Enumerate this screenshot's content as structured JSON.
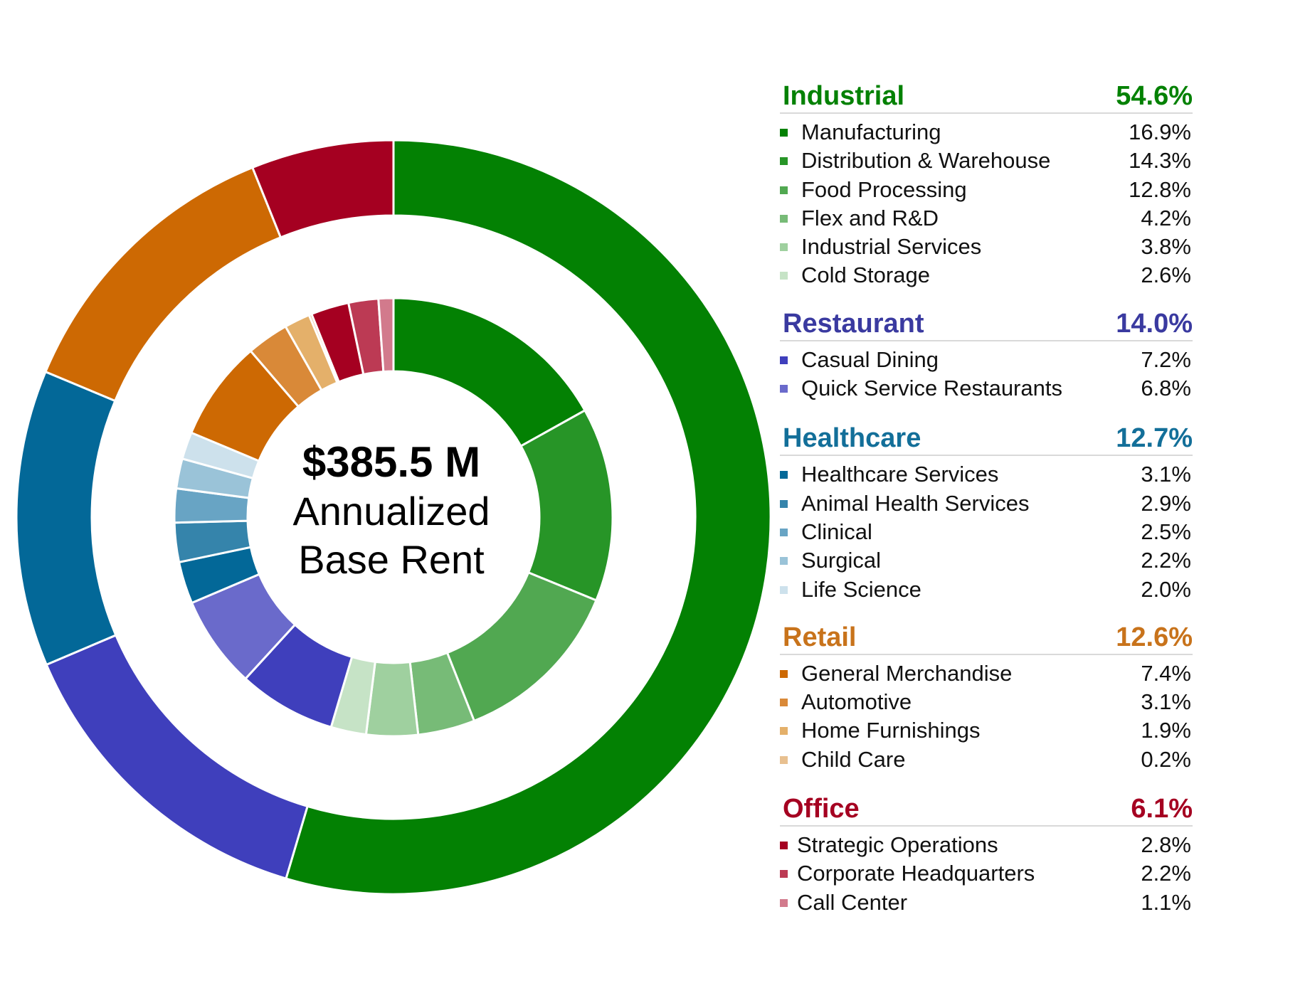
{
  "center": {
    "amount": "$385.5 M",
    "line1": "Annualized",
    "line2": "Base Rent"
  },
  "chart_data": {
    "type": "pie",
    "subtype": "nested-donut",
    "title": "$385.5 M Annualized Base Rent",
    "groups": [
      {
        "name": "Industrial",
        "value": 54.6,
        "pct_label": "54.6%",
        "color": "#038103",
        "items": [
          {
            "name": "Manufacturing",
            "value": 16.9,
            "pct_label": "16.9%",
            "color": "#038103"
          },
          {
            "name": "Distribution & Warehouse",
            "value": 14.3,
            "pct_label": "14.3%",
            "color": "#279527"
          },
          {
            "name": "Food Processing",
            "value": 12.8,
            "pct_label": "12.8%",
            "color": "#51a851"
          },
          {
            "name": "Flex and R&D",
            "value": 4.2,
            "pct_label": "4.2%",
            "color": "#77bb77"
          },
          {
            "name": "Industrial Services",
            "value": 3.8,
            "pct_label": "3.8%",
            "color": "#9fd09f"
          },
          {
            "name": "Cold Storage",
            "value": 2.6,
            "pct_label": "2.6%",
            "color": "#c6e3c6"
          }
        ]
      },
      {
        "name": "Restaurant",
        "value": 14.0,
        "pct_label": "14.0%",
        "color": "#3f3fbc",
        "items": [
          {
            "name": "Casual Dining",
            "value": 7.2,
            "pct_label": "7.2%",
            "color": "#3f3fbc"
          },
          {
            "name": "Quick Service Restaurants",
            "value": 6.8,
            "pct_label": "6.8%",
            "color": "#6a6acb"
          }
        ]
      },
      {
        "name": "Healthcare",
        "value": 12.7,
        "pct_label": "12.7%",
        "color": "#036898",
        "items": [
          {
            "name": "Healthcare Services",
            "value": 3.1,
            "pct_label": "3.1%",
            "color": "#036898"
          },
          {
            "name": "Animal Health Services",
            "value": 2.9,
            "pct_label": "2.9%",
            "color": "#3584ab"
          },
          {
            "name": "Clinical",
            "value": 2.5,
            "pct_label": "2.5%",
            "color": "#68a4c4"
          },
          {
            "name": "Surgical",
            "value": 2.2,
            "pct_label": "2.2%",
            "color": "#9ac3d8"
          },
          {
            "name": "Life Science",
            "value": 2.0,
            "pct_label": "2.0%",
            "color": "#cde1ec"
          }
        ]
      },
      {
        "name": "Retail",
        "value": 12.6,
        "pct_label": "12.6%",
        "color": "#cd6903",
        "items": [
          {
            "name": "General Merchandise",
            "value": 7.4,
            "pct_label": "7.4%",
            "color": "#cd6903"
          },
          {
            "name": "Automotive",
            "value": 3.1,
            "pct_label": "3.1%",
            "color": "#d98938"
          },
          {
            "name": "Home Furnishings",
            "value": 1.9,
            "pct_label": "1.9%",
            "color": "#e4b06a"
          },
          {
            "name": "Child Care",
            "value": 0.2,
            "pct_label": "0.2%",
            "color": "#e8c090"
          }
        ]
      },
      {
        "name": "Office",
        "value": 6.1,
        "pct_label": "6.1%",
        "color": "#a50021",
        "items": [
          {
            "name": "Strategic Operations",
            "value": 2.8,
            "pct_label": "2.8%",
            "color": "#a50021"
          },
          {
            "name": "Corporate Headquarters",
            "value": 2.2,
            "pct_label": "2.2%",
            "color": "#bc3a54"
          },
          {
            "name": "Call Center",
            "value": 1.1,
            "pct_label": "1.1%",
            "color": "#d27a8c"
          }
        ]
      }
    ]
  }
}
